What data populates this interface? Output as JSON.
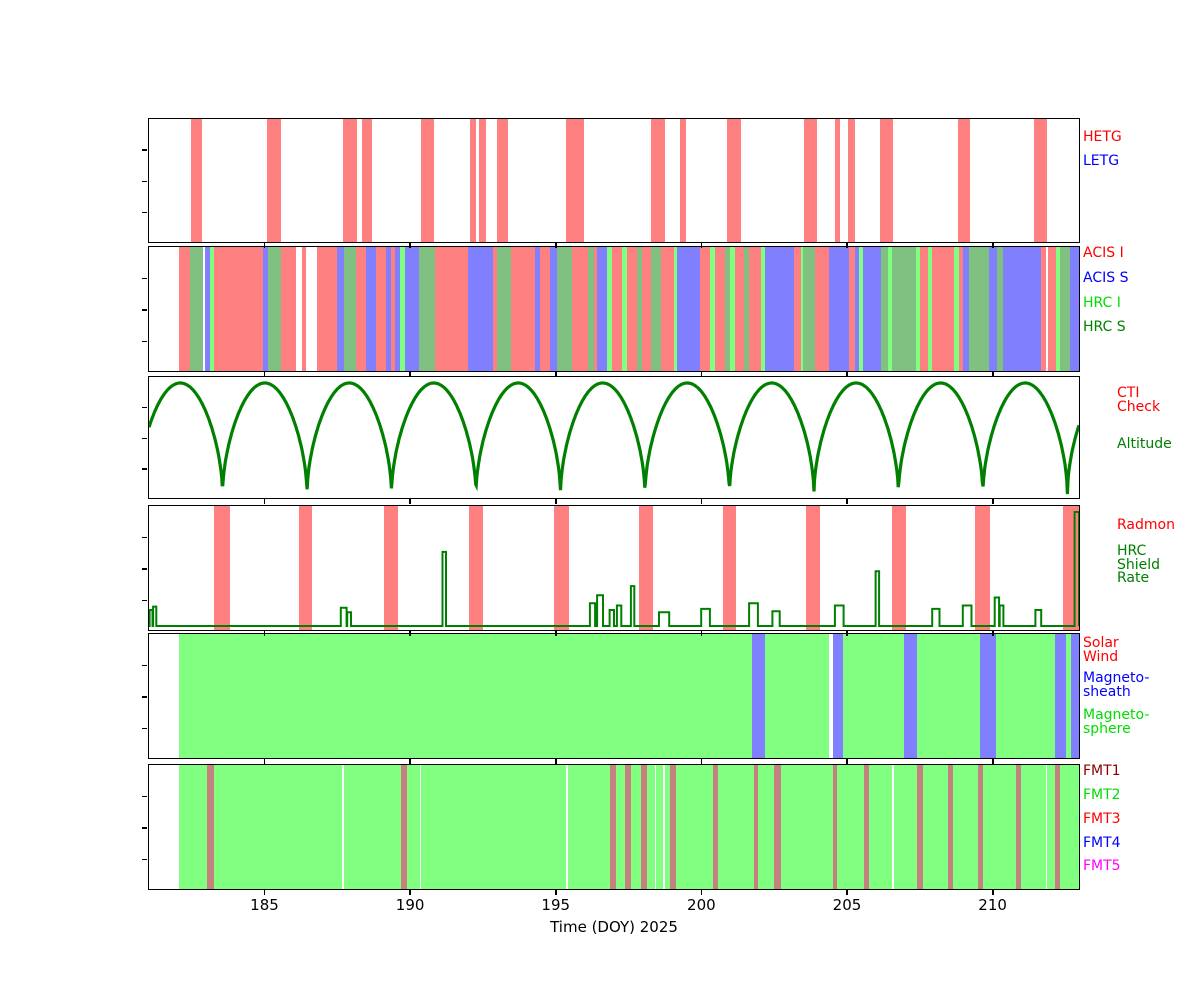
{
  "figure": {
    "xlabel": "Time (DOY) 2025",
    "x_ticks": [
      "185",
      "190",
      "195",
      "200",
      "205",
      "210"
    ],
    "x_tick_values": [
      185,
      190,
      195,
      200,
      205,
      210
    ],
    "x_range": [
      181,
      213
    ],
    "background": "#ffffff",
    "colors": {
      "bar_red": "#ff8080",
      "bar_blue": "#8080ff",
      "bar_bright_green": "#80ff80",
      "bar_sage_green": "#80c080",
      "bar_brick": "#c58080",
      "line_green": "#008000",
      "label_red": "#ff0000",
      "label_blue": "#0000ff",
      "label_bright_green": "#00dd00",
      "label_dark_green": "#008000",
      "label_dark_red": "#8b0000",
      "label_magenta": "#ff00ff",
      "axis_black": "#000000"
    }
  },
  "chart_data": [
    {
      "id": "gratings",
      "type": "timeline-bars",
      "legend": [
        {
          "lines": [
            "HETG"
          ],
          "color": "#ff0000"
        },
        {
          "lines": [
            "LETG"
          ],
          "color": "#0000ff"
        }
      ],
      "bar_color": "#ff8080",
      "hetg_bars": [
        [
          182.43,
          182.84
        ],
        [
          185.07,
          185.55
        ],
        [
          187.67,
          188.15
        ],
        [
          188.33,
          188.67
        ],
        [
          190.35,
          190.8
        ],
        [
          192.03,
          192.24
        ],
        [
          192.37,
          192.58
        ],
        [
          192.96,
          193.37
        ],
        [
          195.36,
          195.97
        ],
        [
          198.27,
          198.75
        ],
        [
          199.27,
          199.47
        ],
        [
          200.88,
          201.36
        ],
        [
          203.55,
          204.0
        ],
        [
          204.62,
          204.79
        ],
        [
          205.06,
          205.3
        ],
        [
          206.16,
          206.61
        ],
        [
          208.84,
          209.25
        ],
        [
          211.44,
          211.89
        ]
      ],
      "letg_bars": []
    },
    {
      "id": "instruments",
      "type": "timeline-segments",
      "legend": [
        {
          "lines": [
            "ACIS I"
          ],
          "color": "#ff0000"
        },
        {
          "lines": [
            "ACIS S"
          ],
          "color": "#0000ff"
        },
        {
          "lines": [
            "HRC I"
          ],
          "color": "#00dd00"
        },
        {
          "lines": [
            "HRC S"
          ],
          "color": "#008000"
        }
      ],
      "segment_colors": {
        "ACIS I": "#ff8080",
        "ACIS S": "#8080ff",
        "HRC I": "#80ff80",
        "HRC S": "#80c080"
      },
      "segments": [
        [
          182.02,
          182.42,
          "ACIS I"
        ],
        [
          182.42,
          182.85,
          "HRC S"
        ],
        [
          182.91,
          183.1,
          "ACIS S"
        ],
        [
          183.1,
          183.24,
          "HRC I"
        ],
        [
          183.24,
          184.91,
          "ACIS I"
        ],
        [
          184.91,
          185.08,
          "ACIS S"
        ],
        [
          185.08,
          185.54,
          "HRC S"
        ],
        [
          185.54,
          186.05,
          "ACIS I"
        ],
        [
          186.28,
          186.4,
          "ACIS I"
        ],
        [
          186.79,
          187.48,
          "ACIS I"
        ],
        [
          187.48,
          187.71,
          "ACIS S"
        ],
        [
          187.71,
          188.11,
          "HRC S"
        ],
        [
          188.11,
          188.45,
          "ACIS I"
        ],
        [
          188.45,
          188.8,
          "ACIS S"
        ],
        [
          188.8,
          189.14,
          "ACIS I"
        ],
        [
          189.14,
          189.31,
          "ACIS S"
        ],
        [
          189.31,
          189.48,
          "ACIS I"
        ],
        [
          189.48,
          189.65,
          "ACIS S"
        ],
        [
          189.65,
          189.82,
          "HRC I"
        ],
        [
          189.82,
          190.28,
          "ACIS S"
        ],
        [
          190.28,
          190.85,
          "HRC S"
        ],
        [
          190.85,
          191.99,
          "ACIS I"
        ],
        [
          191.99,
          192.85,
          "ACIS S"
        ],
        [
          192.85,
          192.96,
          "ACIS I"
        ],
        [
          192.96,
          193.44,
          "HRC S"
        ],
        [
          193.44,
          194.28,
          "ACIS I"
        ],
        [
          194.28,
          194.46,
          "ACIS S"
        ],
        [
          194.46,
          194.8,
          "ACIS I"
        ],
        [
          194.8,
          195.03,
          "ACIS S"
        ],
        [
          195.03,
          195.55,
          "HRC S"
        ],
        [
          195.55,
          196.1,
          "ACIS I"
        ],
        [
          196.1,
          196.3,
          "HRC S"
        ],
        [
          196.3,
          196.41,
          "ACIS I"
        ],
        [
          196.41,
          196.75,
          "ACIS S"
        ],
        [
          196.75,
          196.92,
          "HRC I"
        ],
        [
          196.92,
          197.27,
          "ACIS I"
        ],
        [
          197.27,
          197.44,
          "HRC I"
        ],
        [
          197.44,
          197.78,
          "ACIS I"
        ],
        [
          197.78,
          197.95,
          "HRC S"
        ],
        [
          197.95,
          198.29,
          "ACIS I"
        ],
        [
          198.29,
          198.63,
          "HRC S"
        ],
        [
          198.63,
          199.06,
          "ACIS I"
        ],
        [
          199.06,
          199.18,
          "HRC I"
        ],
        [
          199.18,
          199.95,
          "ACIS S"
        ],
        [
          199.95,
          200.3,
          "ACIS I"
        ],
        [
          200.3,
          200.47,
          "HRC I"
        ],
        [
          200.47,
          200.81,
          "ACIS I"
        ],
        [
          200.81,
          200.98,
          "HRC S"
        ],
        [
          200.98,
          201.15,
          "HRC I"
        ],
        [
          201.15,
          201.49,
          "ACIS I"
        ],
        [
          201.49,
          201.66,
          "HRC S"
        ],
        [
          201.66,
          202.05,
          "ACIS I"
        ],
        [
          202.05,
          202.2,
          "HRC I"
        ],
        [
          202.2,
          203.2,
          "ACIS S"
        ],
        [
          203.2,
          203.42,
          "ACIS I"
        ],
        [
          203.42,
          203.52,
          "HRC I"
        ],
        [
          203.52,
          203.9,
          "HRC S"
        ],
        [
          203.9,
          204.4,
          "ACIS I"
        ],
        [
          204.4,
          205.1,
          "ACIS S"
        ],
        [
          205.1,
          205.3,
          "ACIS I"
        ],
        [
          205.3,
          205.42,
          "ACIS S"
        ],
        [
          205.42,
          205.58,
          "HRC I"
        ],
        [
          205.58,
          206.2,
          "ACIS S"
        ],
        [
          206.2,
          206.42,
          "HRC S"
        ],
        [
          206.42,
          206.58,
          "HRC I"
        ],
        [
          206.58,
          207.4,
          "HRC S"
        ],
        [
          207.4,
          207.52,
          "HRC I"
        ],
        [
          207.52,
          207.8,
          "ACIS I"
        ],
        [
          207.8,
          207.93,
          "HRC I"
        ],
        [
          207.93,
          208.7,
          "ACIS I"
        ],
        [
          208.7,
          208.88,
          "HRC I"
        ],
        [
          208.88,
          209.02,
          "ACIS I"
        ],
        [
          209.02,
          209.2,
          "ACIS S"
        ],
        [
          209.2,
          209.9,
          "HRC S"
        ],
        [
          209.9,
          210.18,
          "ACIS S"
        ],
        [
          210.18,
          210.4,
          "HRC S"
        ],
        [
          210.4,
          211.7,
          "ACIS S"
        ],
        [
          211.7,
          211.86,
          "ACIS I"
        ],
        [
          211.92,
          212.22,
          "ACIS I"
        ],
        [
          212.22,
          212.34,
          "HRC I"
        ],
        [
          212.34,
          212.7,
          "HRC S"
        ],
        [
          212.7,
          213.0,
          "ACIS S"
        ]
      ]
    },
    {
      "id": "altitude",
      "type": "line",
      "legend": [
        {
          "lines": [
            "CTI",
            "Check"
          ],
          "color": "#ff0000"
        },
        {
          "lines": [
            "Altitude"
          ],
          "color": "#008000"
        }
      ],
      "line_color": "#008000",
      "orbit_minima_doy": [
        183.53,
        186.44,
        189.36,
        192.27,
        195.19,
        198.1,
        200.97,
        203.88,
        206.78,
        209.69,
        212.6
      ],
      "orbit_period_days": 2.907,
      "arch_exponent": 0.55
    },
    {
      "id": "radmon",
      "type": "timeline-bars+line",
      "legend": [
        {
          "lines": [
            "Radmon"
          ],
          "color": "#ff0000"
        },
        {
          "lines": [
            "HRC",
            "Shield",
            "Rate"
          ],
          "color": "#008000"
        }
      ],
      "bar_color": "#ff8080",
      "line_color": "#008000",
      "radmon_bars": [
        [
          183.25,
          183.77
        ],
        [
          186.17,
          186.61
        ],
        [
          189.08,
          189.56
        ],
        [
          192.0,
          192.48
        ],
        [
          194.95,
          195.46
        ],
        [
          197.86,
          198.34
        ],
        [
          200.74,
          201.19
        ],
        [
          203.62,
          204.1
        ],
        [
          206.57,
          207.05
        ],
        [
          209.42,
          209.93
        ],
        [
          212.44,
          213.0
        ]
      ],
      "shield_spikes": [
        [
          181.02,
          181.12,
          0.14
        ],
        [
          181.14,
          181.25,
          0.17
        ],
        [
          187.6,
          187.8,
          0.16
        ],
        [
          187.82,
          187.95,
          0.12
        ],
        [
          191.1,
          191.22,
          0.65
        ],
        [
          196.17,
          196.35,
          0.2
        ],
        [
          196.42,
          196.62,
          0.27
        ],
        [
          196.85,
          197.0,
          0.14
        ],
        [
          197.1,
          197.25,
          0.18
        ],
        [
          197.58,
          197.7,
          0.35
        ],
        [
          198.55,
          198.9,
          0.12
        ],
        [
          200.0,
          200.3,
          0.15
        ],
        [
          201.65,
          201.95,
          0.2
        ],
        [
          202.45,
          202.7,
          0.13
        ],
        [
          204.6,
          204.9,
          0.18
        ],
        [
          206.0,
          206.12,
          0.48
        ],
        [
          207.95,
          208.2,
          0.15
        ],
        [
          209.0,
          209.3,
          0.18
        ],
        [
          210.1,
          210.25,
          0.25
        ],
        [
          210.27,
          210.4,
          0.18
        ],
        [
          211.5,
          211.7,
          0.14
        ],
        [
          212.85,
          213.0,
          1.0
        ]
      ]
    },
    {
      "id": "boundary",
      "type": "timeline-segments",
      "legend": [
        {
          "lines": [
            "Solar",
            "Wind"
          ],
          "color": "#ff0000"
        },
        {
          "lines": [
            "Magneto-",
            "sheath"
          ],
          "color": "#0000ff"
        },
        {
          "lines": [
            "Magneto-",
            "sphere"
          ],
          "color": "#00dd00"
        }
      ],
      "segment_colors": {
        "Solar Wind": "#ff8080",
        "Magneto-sheath": "#8080ff",
        "Magneto-sphere": "#80ff80"
      },
      "segments": [
        [
          182.02,
          201.74,
          "Magneto-sphere"
        ],
        [
          201.74,
          202.18,
          "Magneto-sheath"
        ],
        [
          202.18,
          204.4,
          "Magneto-sphere"
        ],
        [
          204.52,
          204.89,
          "Magneto-sheath"
        ],
        [
          204.89,
          206.98,
          "Magneto-sphere"
        ],
        [
          206.98,
          207.43,
          "Magneto-sheath"
        ],
        [
          207.43,
          209.59,
          "Magneto-sphere"
        ],
        [
          209.59,
          210.14,
          "Magneto-sheath"
        ],
        [
          210.14,
          212.16,
          "Magneto-sphere"
        ],
        [
          212.16,
          212.55,
          "Magneto-sheath"
        ],
        [
          212.55,
          212.72,
          "Magneto-sphere"
        ],
        [
          212.72,
          213.0,
          "Magneto-sheath"
        ]
      ]
    },
    {
      "id": "telemetry",
      "type": "timeline-segments",
      "legend": [
        {
          "lines": [
            "FMT1"
          ],
          "color": "#8b0000"
        },
        {
          "lines": [
            "FMT2"
          ],
          "color": "#00dd00"
        },
        {
          "lines": [
            "FMT3"
          ],
          "color": "#ff0000"
        },
        {
          "lines": [
            "FMT4"
          ],
          "color": "#0000ff"
        },
        {
          "lines": [
            "FMT5"
          ],
          "color": "#ff00ff"
        }
      ],
      "segment_colors": {
        "FMT1": "#c58080",
        "FMT2": "#80ff80"
      },
      "fmt2_background": [
        182.02,
        213.0
      ],
      "fmt1_bars": [
        [
          183.0,
          183.25
        ],
        [
          189.67,
          189.88
        ],
        [
          196.87,
          197.08
        ],
        [
          197.39,
          197.58
        ],
        [
          197.94,
          198.15
        ],
        [
          198.92,
          199.13
        ],
        [
          200.4,
          200.58
        ],
        [
          201.81,
          201.97
        ],
        [
          202.52,
          202.73
        ],
        [
          204.55,
          204.69
        ],
        [
          205.6,
          205.78
        ],
        [
          207.44,
          207.63
        ],
        [
          208.5,
          208.67
        ],
        [
          209.51,
          209.7
        ],
        [
          210.82,
          211.02
        ],
        [
          212.19,
          212.36
        ]
      ],
      "white_gaps": [
        187.65,
        190.32,
        195.35,
        198.4,
        198.7,
        206.58,
        211.85
      ]
    }
  ]
}
